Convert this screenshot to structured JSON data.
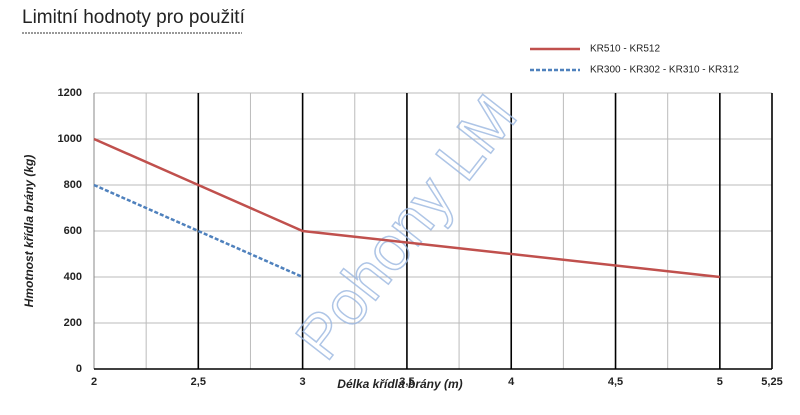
{
  "chart_data": {
    "type": "line",
    "title": "Limitní hodnoty pro použití",
    "watermark": "Pohony LM",
    "x_label": "Délka křídla brány (m)",
    "y_label": "Hmotnost křídla brány (kg)",
    "xlim": [
      2,
      5.25
    ],
    "xticks": [
      2,
      {
        "value": 2.5,
        "label": "2,5"
      },
      3,
      {
        "value": 3.5,
        "label": "3,5"
      },
      4,
      {
        "value": 4.5,
        "label": "4,5"
      },
      5,
      {
        "value": 5.25,
        "label": "5,25"
      }
    ],
    "x_minor_grid": [
      2.25,
      2.75,
      3.25,
      3.75,
      4.25,
      4.75
    ],
    "ylim": [
      0,
      1200
    ],
    "yticks": [
      0,
      200,
      400,
      600,
      800,
      1000,
      1200
    ],
    "grid": true,
    "legend": "top-right",
    "series": [
      {
        "name": "KR510 - KR512",
        "color": "#c0504d",
        "dash": false,
        "x": [
          2,
          2.5,
          3,
          5
        ],
        "values": [
          1000,
          800,
          600,
          400
        ]
      },
      {
        "name": "KR300  - KR302 - KR310 - KR312",
        "color": "#4f81bd",
        "dash": true,
        "x": [
          2,
          3
        ],
        "values": [
          800,
          400
        ]
      }
    ]
  }
}
